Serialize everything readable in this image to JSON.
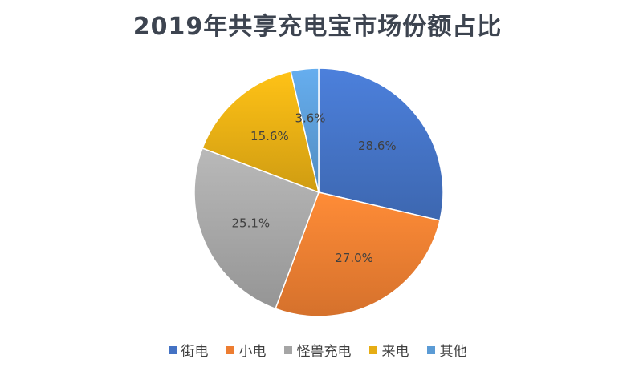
{
  "chart_data": {
    "type": "pie",
    "title": "2019年共享充电宝市场份额占比",
    "categories": [
      "街电",
      "小电",
      "怪兽充电",
      "来电",
      "其他"
    ],
    "values": [
      28.6,
      27.0,
      25.1,
      15.6,
      3.6
    ],
    "data_labels": [
      "28.6%",
      "27.0%",
      "25.1%",
      "15.6%",
      "3.6%"
    ],
    "colors": [
      "#4472c4",
      "#ed7d31",
      "#a5a5a5",
      "#e6ad14",
      "#5b9bd5"
    ],
    "legend_position": "bottom",
    "start_angle": "12 o'clock",
    "direction": "clockwise"
  }
}
